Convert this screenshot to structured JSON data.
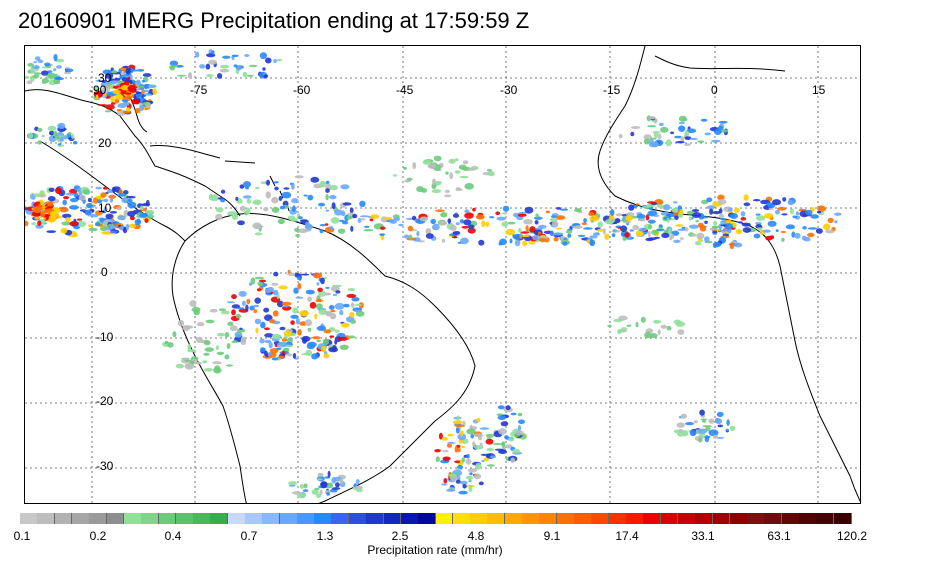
{
  "title": "20160901 IMERG Precipitation ending at 17:59:59 Z",
  "map": {
    "region": "Tropical Atlantic, South America, West Africa",
    "longitude_labels": [
      "-90",
      "-75",
      "-60",
      "-45",
      "-30",
      "-15",
      "0",
      "15"
    ],
    "latitude_labels": [
      "30",
      "20",
      "10",
      "0",
      "-10",
      "-20",
      "-30"
    ],
    "gridlines": "dotted",
    "features": [
      {
        "name": "Hurricane near Gulf of Mexico (Hermine)",
        "lon": -85,
        "lat": 27,
        "intensity": "heavy"
      },
      {
        "name": "ITCZ rain band",
        "lat_range": [
          5,
          12
        ],
        "lon_range": [
          -45,
          15
        ],
        "intensity": "moderate-heavy"
      },
      {
        "name": "Eastern Pacific convection",
        "lon": -90,
        "lat": 10,
        "intensity": "heavy"
      },
      {
        "name": "Amazon convection",
        "lon": -62,
        "lat": -8,
        "intensity": "moderate"
      },
      {
        "name": "South Atlantic frontal band",
        "lon": -38,
        "lat": -28,
        "intensity": "light-moderate"
      }
    ]
  },
  "colorbar": {
    "tick_labels": [
      "0.1",
      "0.2",
      "0.4",
      "0.7",
      "1.3",
      "2.5",
      "4.8",
      "9.1",
      "17.4",
      "33.1",
      "63.1",
      "120.2"
    ],
    "label": "Precipitation rate (mm/hr)",
    "colors": [
      "#c8c8c8",
      "#bdbdbd",
      "#b2b2b2",
      "#a6a6a6",
      "#9a9a9a",
      "#8e8e8e",
      "#90e09a",
      "#7ed68a",
      "#6ccb7b",
      "#5bc16c",
      "#4ab75d",
      "#39ad4e",
      "#c8d8ff",
      "#a8c8ff",
      "#88b8ff",
      "#68a8ff",
      "#4898ff",
      "#2888ff",
      "#3c64f0",
      "#2e4ee0",
      "#2038d0",
      "#1428c0",
      "#0a18b0",
      "#0008a0",
      "#fff200",
      "#ffe000",
      "#ffce00",
      "#ffbc00",
      "#ffa800",
      "#ff9600",
      "#ff8400",
      "#ff7000",
      "#ff5c00",
      "#ff4800",
      "#ff3000",
      "#ff1800",
      "#f00000",
      "#dc0000",
      "#c80000",
      "#b40000",
      "#a00000",
      "#8c0000",
      "#7a1010",
      "#6c0c0c",
      "#5e0808",
      "#500404",
      "#440202",
      "#380000"
    ]
  }
}
